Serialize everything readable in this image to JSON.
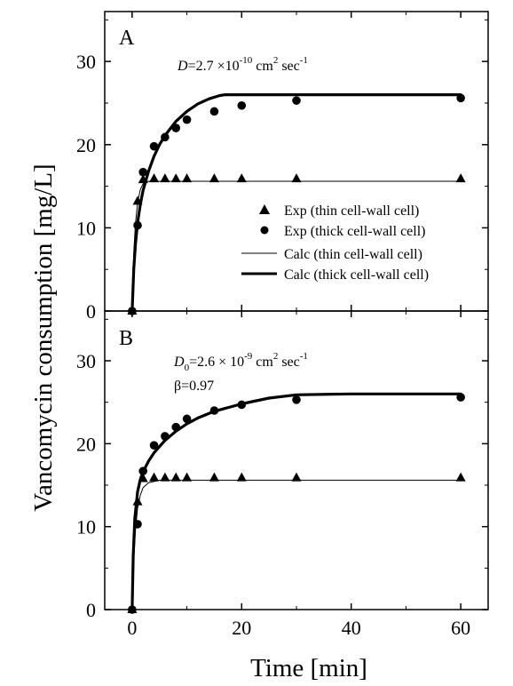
{
  "chart_data": {
    "type": "line",
    "ylabel": "Vancomycin consumption [mg/L]",
    "xlabel": "Time [min]",
    "xlim": [
      -5,
      65
    ],
    "ylim": [
      0,
      36
    ],
    "x_ticks": [
      0,
      20,
      40,
      60
    ],
    "y_ticks": [
      0,
      10,
      20,
      30
    ],
    "legend": {
      "position": "center-right",
      "entries": [
        {
          "label": "Exp (thin cell-wall cell)",
          "marker": "triangle"
        },
        {
          "label": "Exp (thick cell-wall cell)",
          "marker": "circle"
        },
        {
          "label": "Calc (thin cell-wall cell)",
          "line": "thin"
        },
        {
          "label": "Calc (thick cell-wall cell)",
          "line": "thick"
        }
      ]
    },
    "panels": [
      {
        "label": "A",
        "annotations": {
          "line1": {
            "pre": "D",
            "mid": "=2.7 ×10",
            "sup1": "-10",
            "mid2": " cm",
            "sup2": "2",
            "post": " sec",
            "sup3": "-1"
          },
          "line2": ""
        },
        "series": [
          {
            "name": "Exp (thin cell-wall cell)",
            "kind": "points",
            "marker": "triangle",
            "x": [
              0,
              1,
              2,
              4,
              6,
              8,
              10,
              15,
              20,
              30,
              60
            ],
            "y": [
              0,
              13.2,
              15.8,
              15.9,
              15.9,
              15.9,
              15.9,
              15.9,
              15.9,
              15.9,
              15.9
            ]
          },
          {
            "name": "Exp (thick cell-wall cell)",
            "kind": "points",
            "marker": "circle",
            "x": [
              0,
              1,
              2,
              4,
              6,
              8,
              10,
              15,
              20,
              30,
              60
            ],
            "y": [
              0,
              10.3,
              16.7,
              19.8,
              20.9,
              22.0,
              23.0,
              24.0,
              24.7,
              25.3,
              25.6
            ]
          },
          {
            "name": "Calc (thin cell-wall cell)",
            "kind": "line",
            "width": "thin",
            "x": [
              0,
              0.3,
              0.6,
              1,
              1.5,
              2,
              3,
              5,
              10,
              20,
              40,
              60
            ],
            "y": [
              0,
              7.0,
              10.5,
              13.0,
              14.6,
              15.3,
              15.6,
              15.6,
              15.6,
              15.6,
              15.6,
              15.6
            ]
          },
          {
            "name": "Calc (thick cell-wall cell)",
            "kind": "line",
            "width": "thick",
            "x": [
              0,
              0.3,
              0.6,
              1,
              1.5,
              2,
              3,
              4,
              5,
              6,
              8,
              10,
              12,
              14,
              16,
              17,
              20,
              30,
              40,
              60
            ],
            "y": [
              0,
              5.0,
              8.0,
              10.6,
              12.8,
              14.5,
              16.8,
              18.6,
              20.0,
              21.1,
              22.8,
              24.0,
              24.9,
              25.5,
              25.9,
              26.0,
              26.0,
              26.0,
              26.0,
              26.0
            ]
          }
        ]
      },
      {
        "label": "B",
        "annotations": {
          "line1": {
            "pre": "D",
            "sub": "0",
            "mid": "=2.6 × 10",
            "sup1": "-9",
            "mid2": " cm",
            "sup2": "2",
            "post": " sec",
            "sup3": "-1"
          },
          "line2": "β=0.97"
        },
        "series": [
          {
            "name": "Exp (thin cell-wall cell)",
            "kind": "points",
            "marker": "triangle",
            "x": [
              0,
              1,
              2,
              4,
              6,
              8,
              10,
              15,
              20,
              30,
              60
            ],
            "y": [
              0,
              13.0,
              15.8,
              15.9,
              15.9,
              15.9,
              15.9,
              15.9,
              15.9,
              15.9,
              15.9
            ]
          },
          {
            "name": "Exp (thick cell-wall cell)",
            "kind": "points",
            "marker": "circle",
            "x": [
              0,
              1,
              2,
              4,
              6,
              8,
              10,
              15,
              20,
              30,
              60
            ],
            "y": [
              0,
              10.3,
              16.7,
              19.8,
              20.9,
              22.0,
              23.0,
              24.0,
              24.7,
              25.3,
              25.6
            ]
          },
          {
            "name": "Calc (thin cell-wall cell)",
            "kind": "line",
            "width": "thin",
            "x": [
              0,
              0.3,
              0.6,
              1,
              1.5,
              2,
              3,
              5,
              10,
              20,
              40,
              60
            ],
            "y": [
              0,
              6.0,
              9.5,
              12.2,
              13.8,
              14.7,
              15.3,
              15.6,
              15.6,
              15.6,
              15.6,
              15.6
            ]
          },
          {
            "name": "Calc (thick cell-wall cell)",
            "kind": "line",
            "width": "thick",
            "x": [
              0,
              0.2,
              0.5,
              1,
              1.5,
              2,
              3,
              4,
              6,
              8,
              10,
              12,
              15,
              20,
              25,
              30,
              40,
              60
            ],
            "y": [
              0,
              6.5,
              11.0,
              14.2,
              15.7,
              16.6,
              17.9,
              18.9,
              20.4,
              21.5,
              22.4,
              23.1,
              23.9,
              24.8,
              25.5,
              25.9,
              26.0,
              26.0
            ]
          }
        ]
      }
    ]
  }
}
